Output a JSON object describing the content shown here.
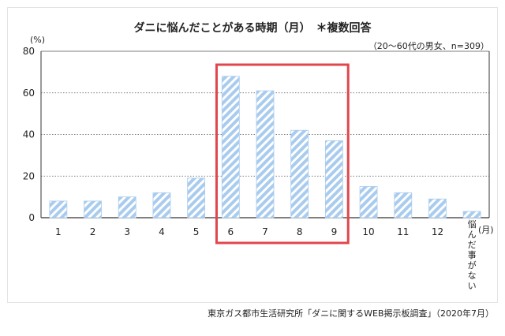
{
  "chart_data": {
    "type": "bar",
    "title": "ダニに悩んだことがある時期（月）　＊複数回答",
    "subtitle": "（20～60代の男女、n=309）",
    "ylabel": "(%)",
    "xlabel": "(月)",
    "ylim": [
      0,
      80
    ],
    "yticks": [
      0,
      20,
      40,
      60,
      80
    ],
    "grid": true,
    "categories": [
      "1",
      "2",
      "3",
      "4",
      "5",
      "6",
      "7",
      "8",
      "9",
      "10",
      "11",
      "12",
      "悩んだ事がない"
    ],
    "values": [
      8,
      8,
      10,
      12,
      19,
      68,
      61,
      42,
      37,
      15,
      12,
      9,
      3
    ],
    "highlight": {
      "from": "6",
      "to": "9",
      "color": "#e0474c"
    },
    "bar_fill": "#a9ccee",
    "bar_stripe": "#ffffff"
  },
  "source": "東京ガス都市生活研究所「ダニに関するWEB掲示板調査」（2020年7月）"
}
